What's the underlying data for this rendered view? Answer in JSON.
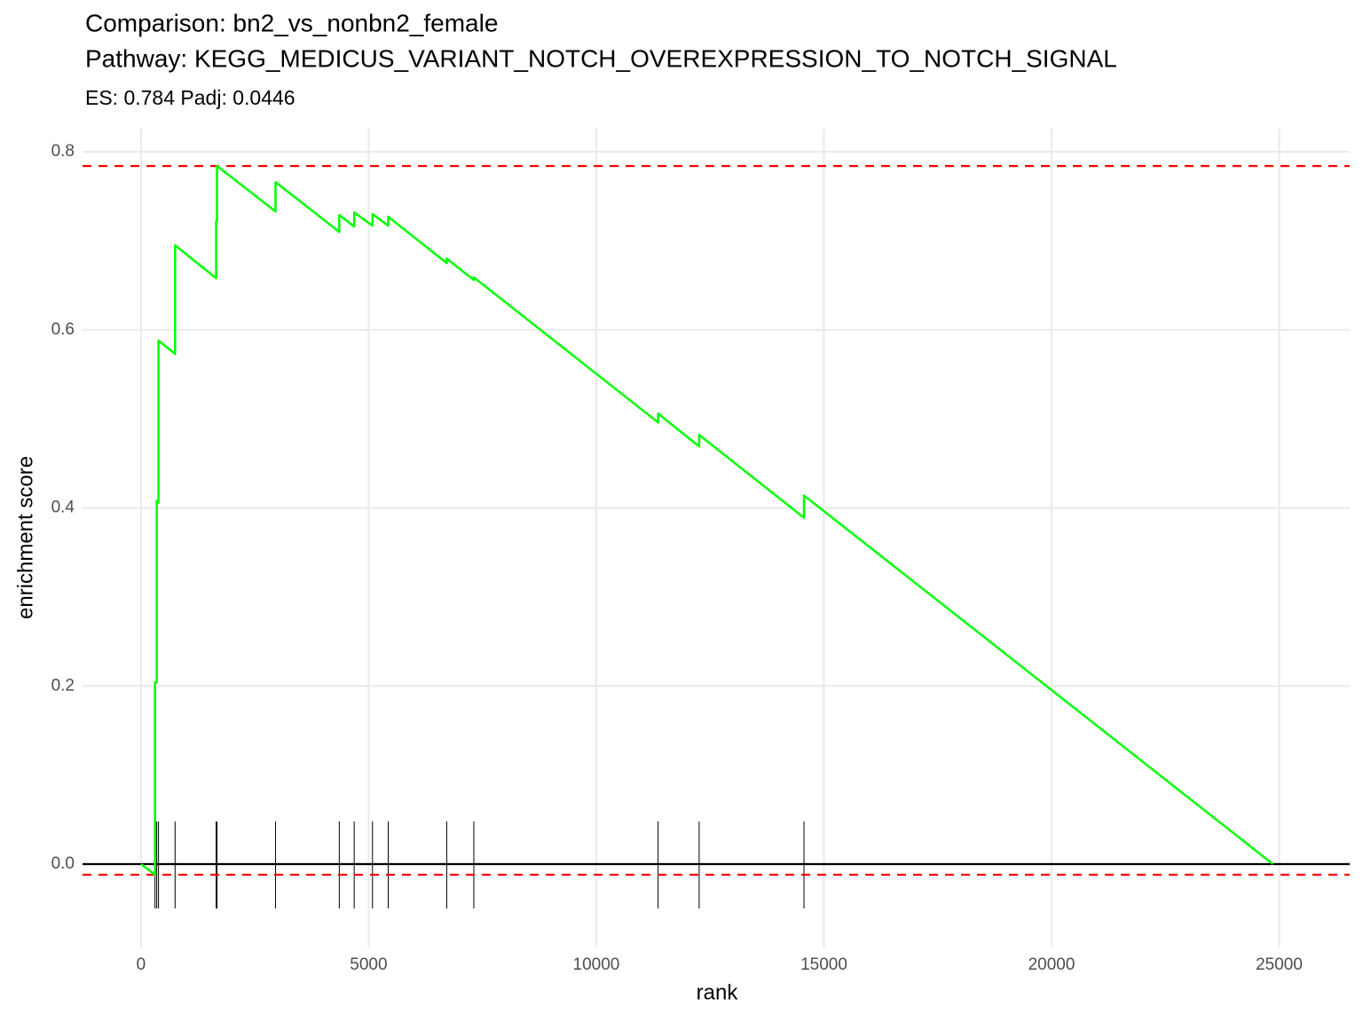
{
  "chart_data": {
    "type": "line",
    "title": "Comparison: bn2_vs_nonbn2_female",
    "title_line2": "Pathway: KEGG_MEDICUS_VARIANT_NOTCH_OVEREXPRESSION_TO_NOTCH_SIGNAL",
    "subtitle": "ES: 0.784 Padj: 0.0446",
    "x_label": "rank",
    "y_label": "enrichment score",
    "xlim": [
      -1285,
      26549
    ],
    "ylim": [
      -0.0937,
      0.826
    ],
    "xticks": [
      0,
      5000,
      10000,
      15000,
      20000,
      25000
    ],
    "yticks": [
      {
        "value": 0,
        "label": "0.0"
      },
      0.2,
      0.4,
      0.6,
      0.8
    ],
    "grid": true,
    "series": [
      {
        "color": "#00ff00",
        "x": [
          0,
          307,
          307,
          345,
          345,
          384,
          384,
          748,
          748,
          1650,
          1650,
          1669,
          1669,
          2955,
          2955,
          4355,
          4355,
          4682,
          4682,
          5084,
          5084,
          5430,
          5430,
          6715,
          6715,
          7310,
          7310,
          11358,
          11358,
          12260,
          12260,
          14562,
          14562,
          24862
        ],
        "values": [
          0,
          -0.012,
          0.204,
          0.204,
          0.408,
          0.406,
          0.588,
          0.573,
          0.695,
          0.658,
          0.722,
          0.722,
          0.784,
          0.733,
          0.766,
          0.71,
          0.729,
          0.716,
          0.732,
          0.717,
          0.73,
          0.717,
          0.727,
          0.675,
          0.68,
          0.656,
          0.659,
          0.496,
          0.506,
          0.469,
          0.482,
          0.389,
          0.414,
          0
        ]
      }
    ],
    "hits": [
      307,
      345,
      384,
      748,
      1650,
      1669,
      2955,
      4355,
      4682,
      5084,
      5430,
      6715,
      7310,
      11358,
      12260,
      14562
    ],
    "hits_color": "#000000",
    "hlines": [
      {
        "value": 0.784,
        "color": "#ff0000",
        "dashed": true
      },
      {
        "value": -0.012,
        "color": "#ff0000",
        "dashed": true
      },
      {
        "value": 0,
        "color": "#000000",
        "dashed": false
      }
    ]
  }
}
